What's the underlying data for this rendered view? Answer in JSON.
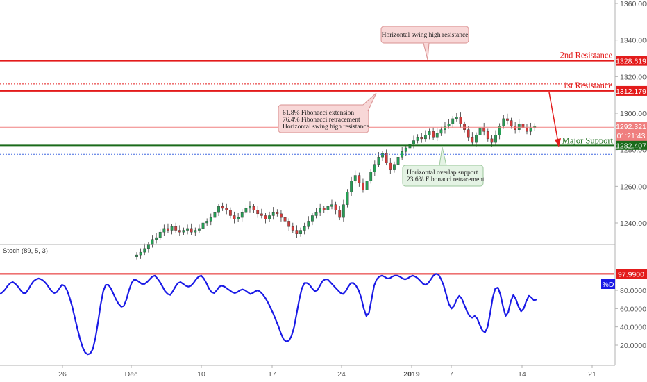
{
  "chart_data": [
    {
      "type": "candlestick",
      "y_axis": {
        "ylim": [
          1225,
          1365
        ],
        "ticks": [
          1240,
          1260,
          1280,
          1300,
          1320,
          1340,
          1360
        ],
        "tick_labels": [
          "1240.000",
          "1260.000",
          "1280.000",
          "1300.000",
          "1320.000",
          "1340.000",
          "1360.000"
        ]
      },
      "x_axis": {
        "tick_labels": [
          "26",
          "Dec",
          "10",
          "17",
          "24",
          "2019",
          "7",
          "14",
          "21"
        ]
      },
      "grid": false,
      "series": [
        {
          "closes": [
            1222.5,
            1224,
            1226,
            1228,
            1231,
            1232,
            1235,
            1237,
            1236,
            1238,
            1236,
            1235,
            1236,
            1237,
            1235,
            1236,
            1237,
            1240,
            1241,
            1243,
            1246,
            1249,
            1248,
            1247,
            1244,
            1242,
            1243,
            1246,
            1248,
            1249,
            1247,
            1245,
            1244,
            1242,
            1244,
            1246,
            1245,
            1243,
            1241,
            1238,
            1236,
            1234,
            1236,
            1238,
            1241,
            1244,
            1246,
            1248,
            1247,
            1249,
            1250,
            1247,
            1243,
            1250,
            1257,
            1263,
            1266,
            1262,
            1258,
            1263,
            1268,
            1272,
            1276,
            1278,
            1273,
            1269,
            1272,
            1276,
            1279,
            1281,
            1283,
            1285,
            1287,
            1286,
            1288,
            1290,
            1287,
            1289,
            1291,
            1293,
            1294,
            1297,
            1298,
            1294,
            1291,
            1287,
            1284,
            1288,
            1292,
            1290,
            1286,
            1284,
            1288,
            1293,
            1297,
            1296,
            1293,
            1291,
            1294,
            1292,
            1290,
            1292,
            1293
          ]
        }
      ],
      "annotations": {
        "second_resistance": {
          "value": 1328.619,
          "label": "2nd Resistance",
          "tag": "1328.619"
        },
        "dotted_resistance": {
          "value": 1316
        },
        "first_resistance": {
          "value": 1312.179,
          "label": "1st Resistance",
          "tag": "1312.179"
        },
        "current_price": {
          "value": 1292.321,
          "tag": "1292.321",
          "countdown": "01:21:43"
        },
        "major_support": {
          "value": 1282.407,
          "label": "Major Support",
          "tag": "1282.407"
        },
        "dotted_support": {
          "value": 1277.5
        },
        "callout_top": {
          "lines": [
            "Horizontal swing high resistance"
          ]
        },
        "callout_middle": {
          "lines": [
            "61.8% Fibonacci extension",
            "76.4% Fibonacci retracement",
            "Horizontal swing high resistance"
          ]
        },
        "callout_bottom": {
          "lines": [
            "Horizontal overlap support",
            "23.6% Fibonacci retracement"
          ]
        }
      }
    },
    {
      "type": "line",
      "title": "Stoch (89, 5, 3)",
      "y_axis": {
        "ylim": [
          5,
          100
        ],
        "ticks": [
          20,
          40,
          60,
          80
        ],
        "tick_labels": [
          "20.0000",
          "40.0000",
          "60.0000",
          "80.0000"
        ]
      },
      "series": [
        {
          "name": "%D",
          "values": [
            76,
            78,
            81,
            85,
            88,
            89,
            87,
            84,
            80,
            77,
            77,
            81,
            86,
            90,
            92,
            93,
            92,
            90,
            87,
            83,
            79,
            77,
            78,
            82,
            86,
            85,
            80,
            72,
            62,
            50,
            38,
            27,
            18,
            12,
            10,
            11,
            16,
            28,
            45,
            64,
            79,
            86,
            86,
            82,
            76,
            70,
            65,
            62,
            63,
            70,
            80,
            88,
            92,
            91,
            89,
            87,
            87,
            89,
            92,
            95,
            96,
            93,
            89,
            84,
            79,
            76,
            75,
            79,
            84,
            88,
            89,
            87,
            85,
            84,
            85,
            88,
            92,
            95,
            96,
            93,
            88,
            82,
            78,
            77,
            80,
            84,
            85,
            84,
            82,
            80,
            78,
            77,
            78,
            80,
            81,
            80,
            78,
            76,
            77,
            79,
            80,
            78,
            75,
            71,
            66,
            60,
            54,
            47,
            40,
            32,
            26,
            24,
            25,
            30,
            40,
            55,
            70,
            82,
            88,
            88,
            86,
            82,
            79,
            80,
            85,
            90,
            92,
            92,
            89,
            86,
            83,
            80,
            77,
            76,
            79,
            84,
            88,
            88,
            85,
            80,
            72,
            60,
            52,
            55,
            70,
            85,
            92,
            95,
            96,
            95,
            93,
            93,
            95,
            96,
            96,
            95,
            93,
            92,
            93,
            95,
            96,
            95,
            93,
            90,
            87,
            86,
            88,
            92,
            96,
            98,
            97,
            92,
            85,
            75,
            65,
            60,
            63,
            70,
            74,
            71,
            64,
            57,
            52,
            50,
            52,
            49,
            42,
            36,
            34,
            40,
            55,
            72,
            82,
            83,
            75,
            62,
            52,
            56,
            68,
            75,
            70,
            62,
            57,
            60,
            68,
            74,
            72,
            69,
            70
          ],
          "value_tag": "%D"
        }
      ],
      "annotations": {
        "level_line": {
          "value": 97.99,
          "tag": "97.9900"
        }
      }
    }
  ]
}
